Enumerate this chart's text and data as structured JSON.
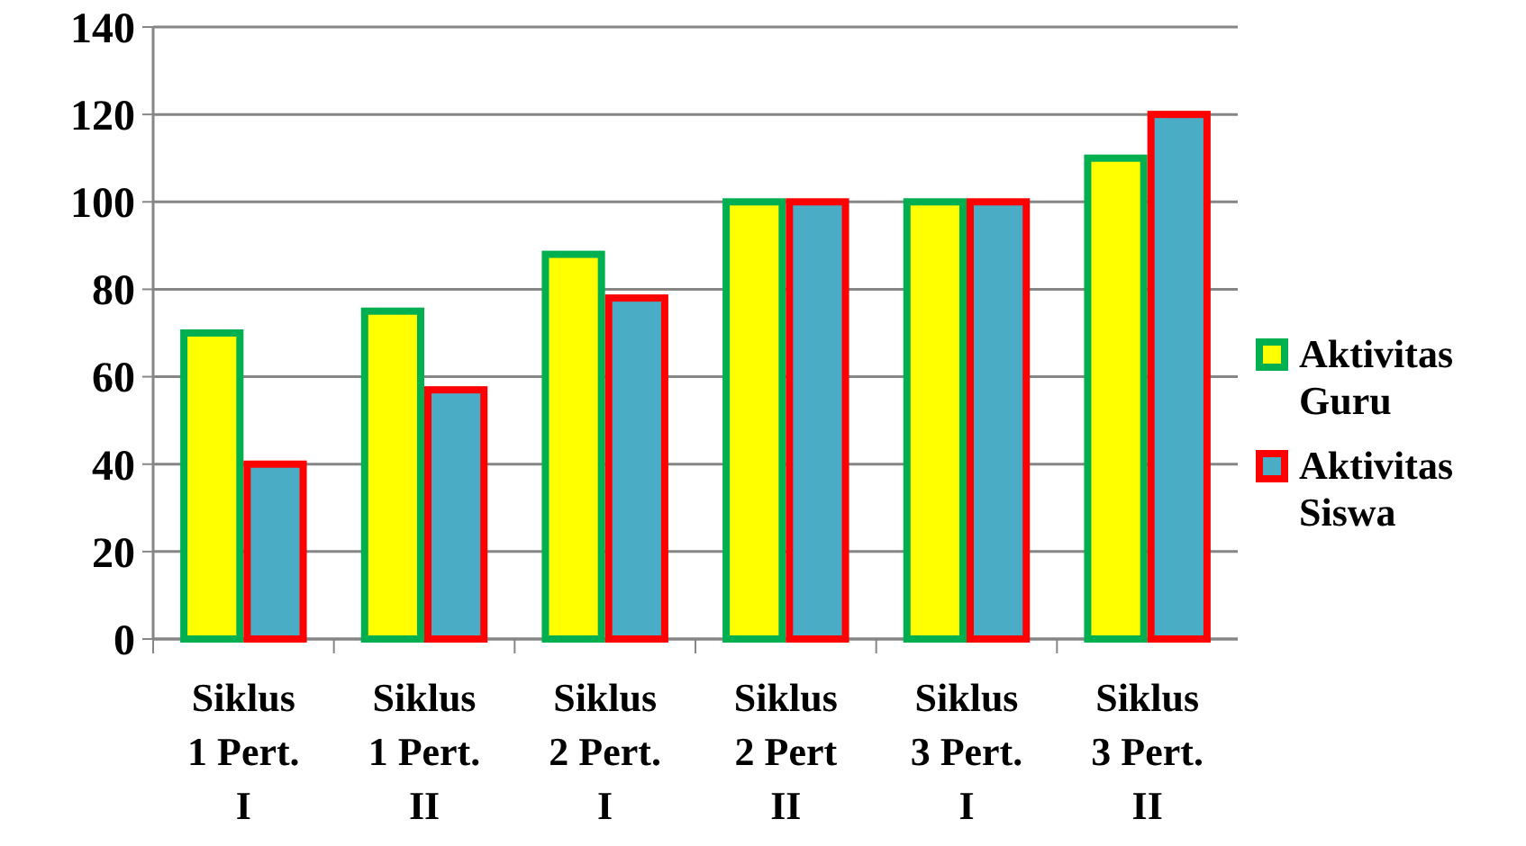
{
  "chart_data": {
    "type": "bar",
    "categories": [
      "Siklus 1 Pert. I",
      "Siklus 1 Pert. II",
      "Siklus 2 Pert. I",
      "Siklus 2 Pert II",
      "Siklus 3 Pert. I",
      "Siklus 3 Pert. II"
    ],
    "series": [
      {
        "name": "Aktivitas Guru",
        "color": "#ffff00",
        "values": [
          70,
          75,
          88,
          100,
          100,
          110
        ]
      },
      {
        "name": "Aktivitas Siswa",
        "color": "#4bacc6",
        "values": [
          40,
          57,
          78,
          100,
          100,
          120
        ]
      }
    ],
    "ylim": [
      0,
      140
    ],
    "yticks": [
      0,
      20,
      40,
      60,
      80,
      100,
      120,
      140
    ],
    "grid": "y",
    "legend": "right"
  }
}
